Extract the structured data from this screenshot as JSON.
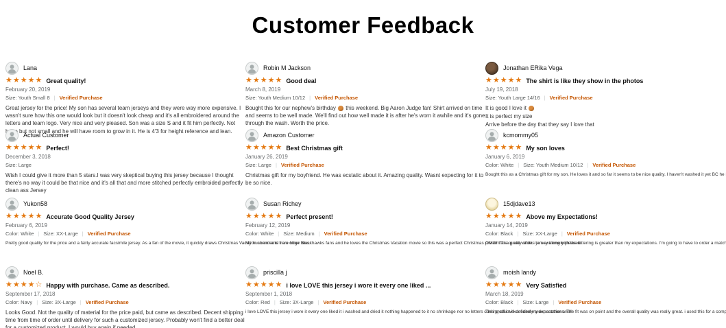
{
  "page": {
    "title": "Customer Feedback"
  },
  "colors": {
    "star_orange": "#e47911",
    "verified_orange": "#c45500",
    "meta_gray": "#565959",
    "body_text": "#333333",
    "background": "#ffffff"
  },
  "icons": {
    "avatar_icon": "person-silhouette",
    "star_filled": "★",
    "star_empty": "☆",
    "ball_emoji": "basketball"
  },
  "verified_label": "Verified Purchase",
  "reviews": [
    {
      "col": 0,
      "row": 0,
      "name": "Lana",
      "avatar": "default",
      "rating": 5,
      "title": "Great quality!",
      "date": "February 20, 2019",
      "attrs": [
        "Size: Youth Small 8"
      ],
      "verified": true,
      "wrap": true,
      "body": [
        "Great jersey for the price! My son has several team jerseys and they were way more expensive. I wasn't sure how this one would look but it doesn't look cheap and it's all embroidered around the letters and team logo. Very nice and very pleased. Son was a size S and it fit him perfectly. Not huge but not small and he will have room to grow in it. He is 4'3 for height reference and lean."
      ]
    },
    {
      "col": 0,
      "row": 1,
      "name": "Actual Customer",
      "avatar": "default",
      "rating": 5,
      "title": "Perfect!",
      "date": "December 3, 2018",
      "attrs": [
        "Size: Large"
      ],
      "verified": false,
      "wrap": true,
      "body": [
        "Wish I could give it more than 5 stars.I was very skeptical buying this jersey because I thought there's no way it could be that nice and it's all that and more stitched perfectly embroided perfectly clean ass Jersey"
      ]
    },
    {
      "col": 0,
      "row": 2,
      "name": "Yukon58",
      "avatar": "default",
      "rating": 5,
      "title": "Accurate Good Quality Jersey",
      "date": "February 6, 2019",
      "attrs": [
        "Color: White",
        "Size: XX-Large"
      ],
      "verified": true,
      "wrap": false,
      "body": [
        "Pretty good quality for the price and a fairly accurate facsimile jersey. As a fan of the movie, it quickly draws Christmas Vacation comments from other fans."
      ]
    },
    {
      "col": 0,
      "row": 3,
      "name": "Noel B.",
      "avatar": "default",
      "rating": 4,
      "title": "Happy with purchase. Came as described.",
      "date": "September 17, 2018",
      "attrs": [
        "Color: Navy",
        "Size: 3X-Large"
      ],
      "verified": true,
      "wrap": true,
      "body": [
        "Looks Good. Not the quality of material for the price paid, but came as described. Decent shipping time from time of order until delivery for such a customized jersey. Probably won't find a better deal for a customized product. I would buy again if needed."
      ]
    },
    {
      "col": 1,
      "row": 0,
      "name": "Robin M Jackson",
      "avatar": "default",
      "rating": 5,
      "title": "Good deal",
      "date": "March 8, 2019",
      "attrs": [
        "Size: Youth Medium 10/12"
      ],
      "verified": true,
      "wrap": true,
      "body": [
        "Bought this for our nephew's birthday 🏀 this weekend. Big Aaron Judge fan! Shirt arrived on time and seems to be well made. We'll find out how well made it is after he's worn it awhile and it's gone through the wash. Worth the price."
      ]
    },
    {
      "col": 1,
      "row": 1,
      "name": "Amazon Customer",
      "avatar": "default",
      "rating": 5,
      "title": "Best Christmas gift",
      "date": "January 26, 2019",
      "attrs": [
        "Size: Large"
      ],
      "verified": true,
      "wrap": true,
      "body": [
        "Christmas gift for my boyfriend. He was ecstatic about it. Amazing quality. Wasnt expecting for it to be so nice."
      ]
    },
    {
      "col": 1,
      "row": 2,
      "name": "Susan Richey",
      "avatar": "default",
      "rating": 5,
      "title": "Perfect present!",
      "date": "February 12, 2019",
      "attrs": [
        "Color: White",
        "Size: Medium"
      ],
      "verified": true,
      "wrap": false,
      "body": [
        "My husband and I are huge Blackhawks fans and he loves the Christmas Vacation movie so this was a perfect Christmas present at a great value. I am extremely pleased."
      ]
    },
    {
      "col": 1,
      "row": 3,
      "name": "priscilla j",
      "avatar": "default",
      "rating": 5,
      "title": "i love LOVE this jersey i wore it every one liked ...",
      "date": "September 1, 2018",
      "attrs": [
        "Color: Red",
        "Size: 3X-Large"
      ],
      "verified": true,
      "wrap": false,
      "body": [
        "i love LOVE this jersey i wore it every one liked it i washed and dried it nothing happened to it no shrinkage nor no letters coming off i will definitely order another one!!"
      ]
    },
    {
      "col": 2,
      "row": 0,
      "name": "Jonathan ERika Vega",
      "avatar": "photo-dark",
      "rating": 5,
      "title": "The shirt is like they show in the photos",
      "date": "July 19, 2018",
      "attrs": [
        "Size: Youth Large 14/16"
      ],
      "verified": true,
      "wrap": true,
      "body": [
        "It is good I love it 🏀",
        "It is perfect my size",
        "Arrive before the day that they say I love that"
      ]
    },
    {
      "col": 2,
      "row": 1,
      "name": "kcmommy05",
      "avatar": "default",
      "rating": 5,
      "title": "My son loves",
      "date": "January 6, 2019",
      "attrs": [
        "Color: White",
        "Size: Youth Medium 10/12"
      ],
      "verified": true,
      "wrap": false,
      "body": [
        "Bought this as a Christmas gift for my son. He loves it and so far it seems to be nice quality. I haven't washed it yet BC he hasn't worn it but it seems decent."
      ]
    },
    {
      "col": 2,
      "row": 2,
      "name": "15djdave13",
      "avatar": "photo-light",
      "rating": 5,
      "title": "Above my Expectations!",
      "date": "January 14, 2019",
      "attrs": [
        "Color: Black",
        "Size: XX-Large"
      ],
      "verified": true,
      "wrap": false,
      "body": [
        "OMG!! The quality of this jersey along with the lettering is greater than my expectations. I'm going to have to order a matching set for my next family vacay."
      ]
    },
    {
      "col": 2,
      "row": 3,
      "name": "moish landy",
      "avatar": "default",
      "rating": 5,
      "title": "Very Satisfied",
      "date": "March 18, 2019",
      "attrs": [
        "Color: Black",
        "Size: Large"
      ],
      "verified": true,
      "wrap": false,
      "body": [
        "This product exceeded my expectations. The fit was on point and the overall quality was really great. i used this for a company give away... went over really well"
      ]
    }
  ]
}
